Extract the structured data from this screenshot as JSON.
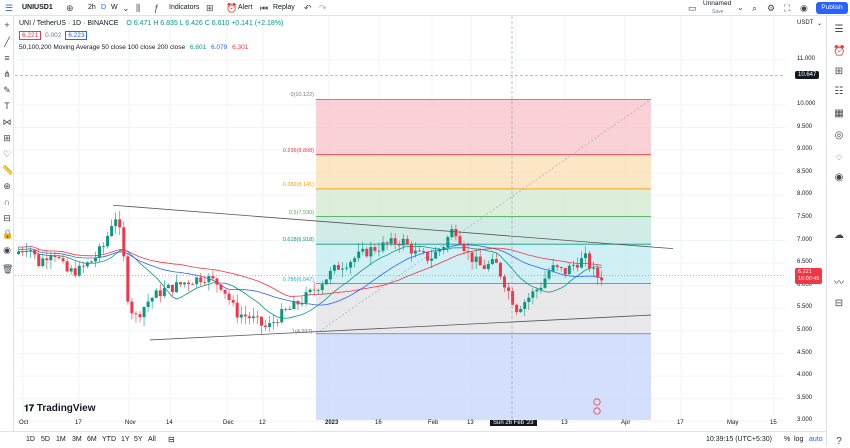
{
  "topbar": {
    "symbol": "UNIUSD1",
    "interval": "2h",
    "interval2": "D",
    "interval3": "W",
    "indicators_label": "Indicators",
    "alert_label": "Alert",
    "replay_label": "Replay",
    "layout_name": "Unnamed",
    "layout_sub": "Save",
    "publish_label": "Publish"
  },
  "legend": {
    "title": "UNI / TetherUS · 1D · BINANCE",
    "ohlc": "O 6.471  H 6.835  L 6.426  C 6.610  +0.141 (+2.18%)",
    "bid": "6.221",
    "spread": "0.002",
    "ask": "6.223",
    "ma_title": "50,100,200 Moving Average 50 close 100 close 200 close",
    "ma50": "6.601",
    "ma100": "6.079",
    "ma200": "6.301"
  },
  "fib_levels": [
    {
      "label": "0(10.122)",
      "color": "#787b86"
    },
    {
      "label": "0.236(8.898)",
      "color": "#f23645"
    },
    {
      "label": "0.382(8.141)",
      "color": "#ff9800"
    },
    {
      "label": "0.5(7.530)",
      "color": "#4caf50"
    },
    {
      "label": "0.618(6.918)",
      "color": "#089981"
    },
    {
      "label": "0.786(6.047)",
      "color": "#00bcd4"
    },
    {
      "label": "1(4.937)",
      "color": "#787b86"
    }
  ],
  "price_axis": {
    "currency": "USDT",
    "labels": [
      "11.000",
      "10.000",
      "9.500",
      "9.000",
      "8.500",
      "8.000",
      "7.500",
      "7.000",
      "6.500",
      "6.000",
      "5.500",
      "5.000",
      "4.500",
      "4.000",
      "3.500",
      "3.000"
    ],
    "crosshair_price": "10.647",
    "last_price": "6.221",
    "countdown": "16:00:45"
  },
  "time_axis": {
    "labels": [
      "Oct",
      "17",
      "Nov",
      "14",
      "Dec",
      "12",
      "2023",
      "16",
      "Feb",
      "13",
      "Sun 26 Feb '23",
      "13",
      "Apr",
      "17",
      "May",
      "15"
    ]
  },
  "bottom": {
    "ranges": [
      "1D",
      "5D",
      "1M",
      "3M",
      "6M",
      "YTD",
      "1Y",
      "5Y",
      "All"
    ],
    "clock": "10:39:15 (UTC+5:30)",
    "pct": "%",
    "log": "log",
    "auto": "auto"
  },
  "watermark": "TradingView",
  "colors": {
    "accent": "#2962ff",
    "up": "#089981",
    "down": "#f23645"
  }
}
